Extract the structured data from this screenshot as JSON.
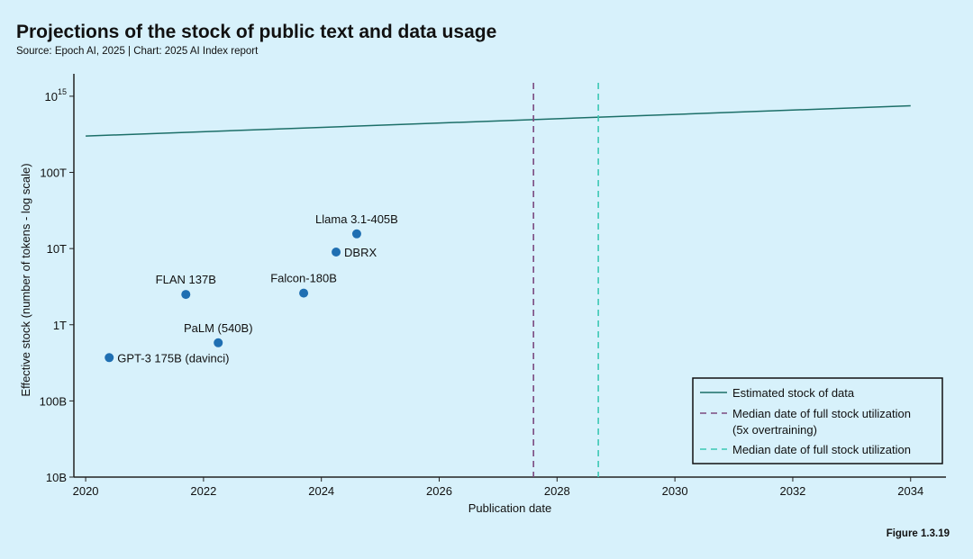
{
  "title": "Projections of the stock of public text and data usage",
  "subtitle": "Source: Epoch AI, 2025 | Chart: 2025 AI Index report",
  "figure_label": "Figure 1.3.19",
  "colors": {
    "background": "#d7f1fb",
    "stock_line": "#1c6f68",
    "point": "#1f6fb2",
    "purple_dash": "#7b4a7f",
    "teal_dash": "#3cc8b4",
    "axis": "#222222"
  },
  "chart_data": {
    "type": "scatter",
    "title": "Projections of the stock of public text and data usage",
    "xlabel": "Publication date",
    "ylabel": "Effective stock (number of tokens - log scale)",
    "xlim": [
      2019.8,
      2034.6
    ],
    "ylim": [
      10000000000,
      1500000000000000
    ],
    "y_scale": "log",
    "x_ticks": [
      2020,
      2022,
      2024,
      2026,
      2028,
      2030,
      2032,
      2034
    ],
    "y_ticks": [
      {
        "value": 10000000000,
        "label": "10B"
      },
      {
        "value": 100000000000,
        "label": "100B"
      },
      {
        "value": 1000000000000,
        "label": "1T"
      },
      {
        "value": 10000000000000,
        "label": "10T"
      },
      {
        "value": 100000000000000,
        "label": "100T"
      },
      {
        "value": 1000000000000000,
        "label": "10",
        "sup": "15"
      }
    ],
    "models": [
      {
        "name": "GPT-3 175B (davinci)",
        "x": 2020.4,
        "y": 370000000000,
        "label_pos": "right"
      },
      {
        "name": "FLAN 137B",
        "x": 2021.7,
        "y": 2500000000000,
        "label_pos": "above"
      },
      {
        "name": "PaLM (540B)",
        "x": 2022.25,
        "y": 580000000000,
        "label_pos": "above"
      },
      {
        "name": "Falcon-180B",
        "x": 2023.7,
        "y": 2600000000000,
        "label_pos": "above"
      },
      {
        "name": "DBRX",
        "x": 2024.25,
        "y": 9000000000000,
        "label_pos": "right"
      },
      {
        "name": "Llama 3.1-405B",
        "x": 2024.6,
        "y": 15600000000000,
        "label_pos": "above"
      }
    ],
    "stock_line": {
      "name": "Estimated stock of data",
      "x": [
        2020,
        2034
      ],
      "y": [
        300000000000000,
        750000000000000
      ]
    },
    "vlines": [
      {
        "name": "Median date of full stock utilization",
        "name_line2": "(5x overtraining)",
        "x": 2027.6,
        "style": "purple"
      },
      {
        "name": "Median date of full stock utilization",
        "name_line2": "",
        "x": 2028.7,
        "style": "teal"
      }
    ],
    "legend_position": "bottom-right"
  }
}
